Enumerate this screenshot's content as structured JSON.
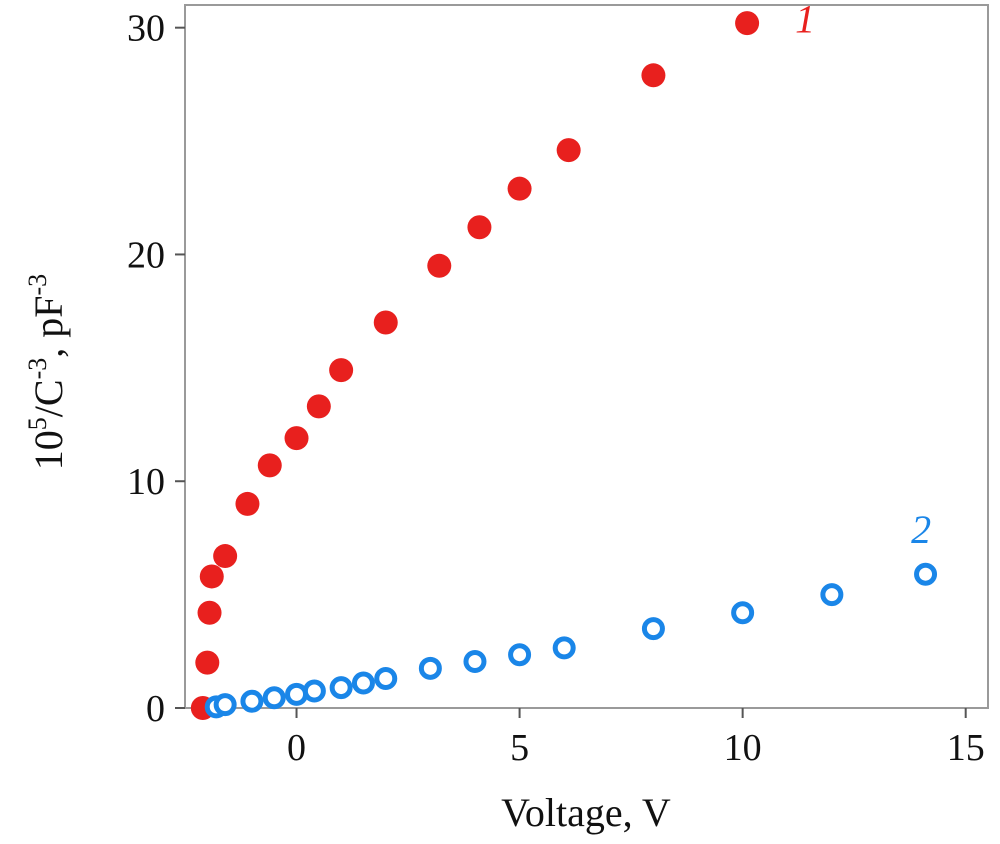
{
  "chart_data": {
    "type": "scatter",
    "xlabel": "Voltage, V",
    "ylabel": {
      "base": "10",
      "exp1": "5",
      "mid": "/C",
      "exp2": "-3",
      "unit": ", pF",
      "exp3": "-3"
    },
    "xlim": [
      -2.5,
      15.5
    ],
    "ylim": [
      0,
      31
    ],
    "xticks": [
      0,
      5,
      10,
      15
    ],
    "yticks": [
      0,
      10,
      20,
      30
    ],
    "grid": false,
    "series": [
      {
        "name": "1",
        "marker": "filled-circle",
        "color": "#e8201e",
        "label_pos": [
          11.4,
          30.4
        ],
        "points": [
          [
            -2.1,
            0
          ],
          [
            -2.0,
            2.0
          ],
          [
            -1.95,
            4.2
          ],
          [
            -1.9,
            5.8
          ],
          [
            -1.6,
            6.7
          ],
          [
            -1.1,
            9.0
          ],
          [
            -0.6,
            10.7
          ],
          [
            0.0,
            11.9
          ],
          [
            0.5,
            13.3
          ],
          [
            1.0,
            14.9
          ],
          [
            2.0,
            17.0
          ],
          [
            3.2,
            19.5
          ],
          [
            4.1,
            21.2
          ],
          [
            5.0,
            22.9
          ],
          [
            6.1,
            24.6
          ],
          [
            8.0,
            27.9
          ],
          [
            10.1,
            30.2
          ]
        ]
      },
      {
        "name": "2",
        "marker": "open-circle",
        "color": "#1a86e8",
        "label_pos": [
          14.0,
          7.9
        ],
        "points": [
          [
            -1.8,
            0.05
          ],
          [
            -1.6,
            0.15
          ],
          [
            -1.0,
            0.3
          ],
          [
            -0.5,
            0.45
          ],
          [
            0.0,
            0.6
          ],
          [
            0.4,
            0.75
          ],
          [
            1.0,
            0.9
          ],
          [
            1.5,
            1.1
          ],
          [
            2.0,
            1.3
          ],
          [
            3.0,
            1.75
          ],
          [
            4.0,
            2.05
          ],
          [
            5.0,
            2.35
          ],
          [
            6.0,
            2.65
          ],
          [
            8.0,
            3.5
          ],
          [
            10.0,
            4.2
          ],
          [
            12.0,
            5.0
          ],
          [
            14.1,
            5.9
          ]
        ]
      }
    ]
  }
}
